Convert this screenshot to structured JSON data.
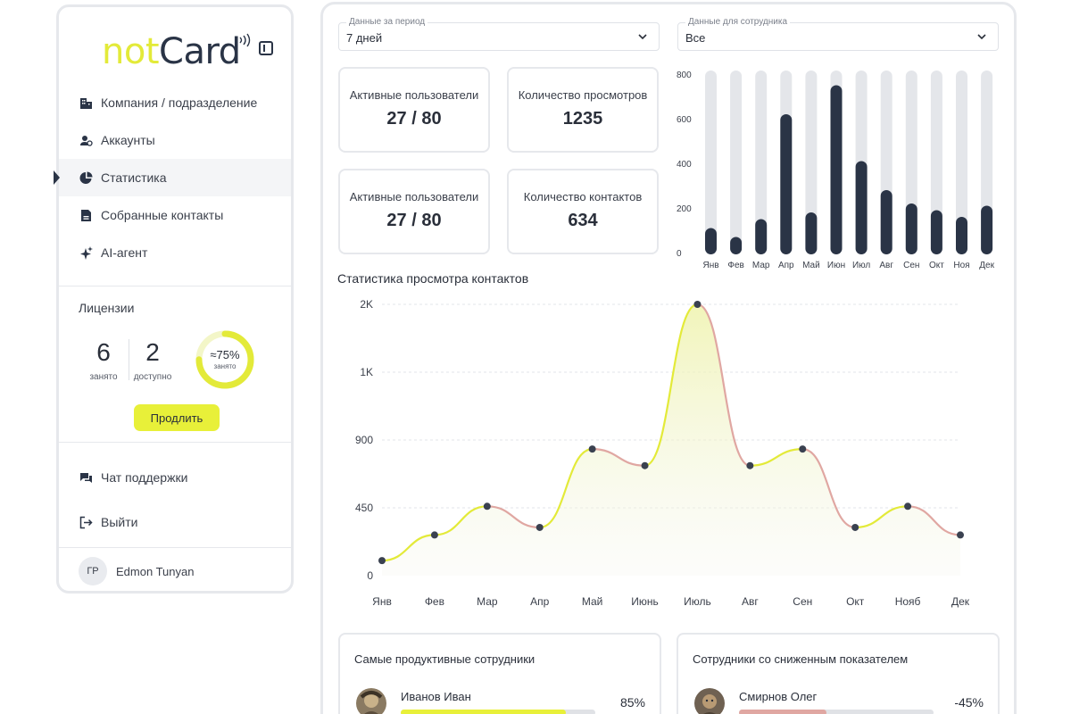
{
  "app": {
    "logo_not": "not",
    "logo_card": "Card"
  },
  "sidebar": {
    "nav": [
      {
        "label": "Компания / подразделение",
        "icon": "building-icon"
      },
      {
        "label": "Аккаунты",
        "icon": "accounts-icon"
      },
      {
        "label": "Статистика",
        "icon": "pie-chart-icon",
        "active": true
      },
      {
        "label": "Собранные контакты",
        "icon": "contacts-icon"
      },
      {
        "label": "AI-агент",
        "icon": "sparkle-icon"
      }
    ],
    "licenses": {
      "title": "Лицензии",
      "used": "6",
      "used_caption": "занято",
      "available": "2",
      "available_caption": "доступно",
      "percent_label": "≈75%",
      "percent_caption": "занято",
      "percent_value": 75,
      "renew_label": "Продлить"
    },
    "support_label": "Чат поддержки",
    "logout_label": "Выйти",
    "user": {
      "initials": "ГР",
      "name": "Edmon Tunyan"
    }
  },
  "filters": {
    "period": {
      "label": "Данные за период",
      "value": "7 дней"
    },
    "employee": {
      "label": "Данные для сотрудника",
      "value": "Все"
    }
  },
  "kpis": [
    {
      "label": "Активные пользователи",
      "value": "27 / 80"
    },
    {
      "label": "Количество просмотров",
      "value": "1235"
    },
    {
      "label": "Активные пользователи",
      "value": "27 / 80"
    },
    {
      "label": "Количество контактов",
      "value": "634"
    }
  ],
  "colors": {
    "accent": "#e8f039",
    "dark": "#2a3446",
    "track": "#e4e6ea",
    "decline": "#e0a7a2"
  },
  "chart_data": [
    {
      "type": "bar",
      "categories": [
        "Янв",
        "Фев",
        "Мар",
        "Апр",
        "Май",
        "Июн",
        "Июл",
        "Авг",
        "Сен",
        "Окт",
        "Ноя",
        "Дек"
      ],
      "values": [
        110,
        70,
        150,
        620,
        180,
        750,
        410,
        280,
        220,
        190,
        160,
        210
      ],
      "ylim": [
        0,
        800
      ],
      "yticks": [
        "0",
        "200",
        "400",
        "600",
        "800"
      ],
      "background_track": true,
      "grid": false,
      "title": "",
      "xlabel": "",
      "ylabel": ""
    },
    {
      "type": "area",
      "title": "Статистика просмотра контактов",
      "categories": [
        "Янв",
        "Фев",
        "Мар",
        "Апр",
        "Май",
        "Июнь",
        "Июль",
        "Авг",
        "Сен",
        "Окт",
        "Нояб",
        "Дек"
      ],
      "values": [
        100,
        270,
        460,
        320,
        840,
        730,
        2000,
        730,
        840,
        320,
        460,
        270
      ],
      "yticks": [
        "0",
        "450",
        "900",
        "1K",
        "2K"
      ],
      "ytick_values": [
        0,
        450,
        900,
        1000,
        2000
      ],
      "grid": true,
      "xlabel": "",
      "ylabel": ""
    }
  ],
  "top_employees": {
    "title": "Самые продуктивные сотрудники",
    "name": "Иванов Иван",
    "percent": "85%",
    "progress": 0.85
  },
  "declined_employees": {
    "title": "Сотрудники со сниженным показателем",
    "name": "Смирнов Олег",
    "percent": "-45%",
    "progress": 0.45
  }
}
